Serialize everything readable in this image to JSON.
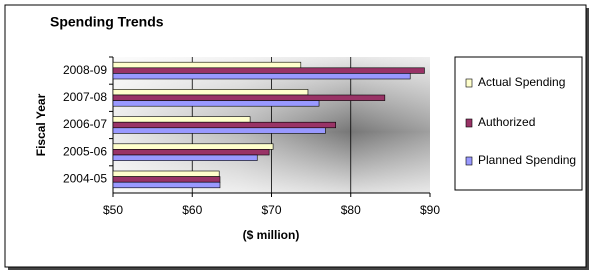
{
  "chart_data": {
    "type": "hbar",
    "title": "Spending Trends",
    "x_label": "($ million)",
    "y_label": "Fiscal Year",
    "categories": [
      "2008-09",
      "2007-08",
      "2006-07",
      "2005-06",
      "2004-05"
    ],
    "series": [
      {
        "name": "Actual Spending",
        "color": "#ffffcc",
        "values": [
          73.7,
          74.6,
          67.3,
          70.2,
          63.4
        ]
      },
      {
        "name": "Authorized",
        "color": "#993366",
        "values": [
          89.3,
          84.3,
          78.1,
          69.7,
          63.5
        ]
      },
      {
        "name": "Planned Spending",
        "color": "#9999ff",
        "values": [
          87.5,
          76.0,
          76.8,
          68.2,
          63.5
        ]
      }
    ],
    "xlim": [
      50,
      90
    ],
    "xticks": [
      {
        "value": 50,
        "label": "$50"
      },
      {
        "value": 60,
        "label": "$60"
      },
      {
        "value": 70,
        "label": "$70"
      },
      {
        "value": 80,
        "label": "$80"
      },
      {
        "value": 90,
        "label": "$90"
      }
    ],
    "grid": true,
    "legend": "right"
  }
}
